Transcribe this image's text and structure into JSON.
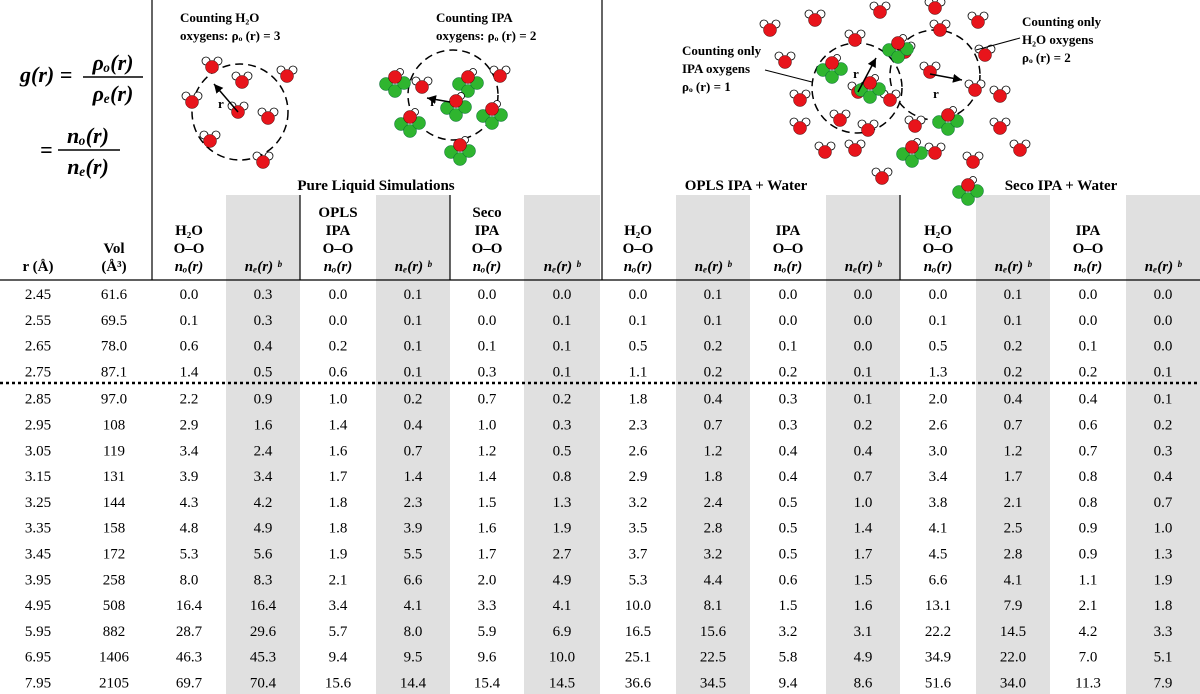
{
  "formula": {
    "lhs": "g(r) =",
    "num1": "ρₒ(r)",
    "den1": "ρₑ(r)",
    "eq2": "=",
    "num2": "nₒ(r)",
    "den2": "nₑ(r)"
  },
  "diagrams": [
    {
      "lines": [
        "Counting H₂O",
        "oxygens:  ρₒ (r) = 3"
      ],
      "radius_label": "r"
    },
    {
      "lines": [
        "Counting  IPA",
        "oxygens: ρₒ (r) = 2"
      ],
      "radius_label": "r"
    },
    {
      "lines": [
        "Counting only",
        "IPA oxygens",
        "ρₒ (r) = 1"
      ],
      "radius_label": "r"
    },
    {
      "lines": [
        "Counting only",
        "H₂O oxygens",
        "ρₒ (r) = 2"
      ],
      "radius_label": "r"
    }
  ],
  "table": {
    "groups": [
      "Pure Liquid Simulations",
      "OPLS IPA + Water",
      "Seco IPA + Water"
    ],
    "columns": [
      [
        "r (Å)"
      ],
      [
        "Vol",
        "(Å³)"
      ],
      [
        "H₂O",
        "O–O",
        "nₒ(r)"
      ],
      [
        "nₑ(r) ᵇ"
      ],
      [
        "OPLS",
        "IPA",
        "O–O",
        "nₒ(r)"
      ],
      [
        "nₑ(r) ᵇ"
      ],
      [
        "Seco",
        "IPA",
        "O–O",
        "nₒ(r)"
      ],
      [
        "nₑ(r) ᵇ"
      ],
      [
        "H₂O",
        "O–O",
        "nₒ(r)"
      ],
      [
        "nₑ(r) ᵇ"
      ],
      [
        "IPA",
        "O–O",
        "nₒ(r)"
      ],
      [
        "nₑ(r) ᵇ"
      ],
      [
        "H₂O",
        "O–O",
        "nₒ(r)"
      ],
      [
        "nₑ(r) ᵇ"
      ],
      [
        "IPA",
        "O–O",
        "nₒ(r)"
      ],
      [
        "nₑ(r) ᵇ"
      ]
    ],
    "rows": [
      [
        "2.45",
        "61.6",
        "0.0",
        "0.3",
        "0.0",
        "0.1",
        "0.0",
        "0.0",
        "0.0",
        "0.1",
        "0.0",
        "0.0",
        "0.0",
        "0.1",
        "0.0",
        "0.0"
      ],
      [
        "2.55",
        "69.5",
        "0.1",
        "0.3",
        "0.0",
        "0.1",
        "0.0",
        "0.1",
        "0.1",
        "0.1",
        "0.0",
        "0.0",
        "0.1",
        "0.1",
        "0.0",
        "0.0"
      ],
      [
        "2.65",
        "78.0",
        "0.6",
        "0.4",
        "0.2",
        "0.1",
        "0.1",
        "0.1",
        "0.5",
        "0.2",
        "0.1",
        "0.0",
        "0.5",
        "0.2",
        "0.1",
        "0.0"
      ],
      [
        "2.75",
        "87.1",
        "1.4",
        "0.5",
        "0.6",
        "0.1",
        "0.3",
        "0.1",
        "1.1",
        "0.2",
        "0.2",
        "0.1",
        "1.3",
        "0.2",
        "0.2",
        "0.1"
      ],
      [
        "2.85",
        "97.0",
        "2.2",
        "0.9",
        "1.0",
        "0.2",
        "0.7",
        "0.2",
        "1.8",
        "0.4",
        "0.3",
        "0.1",
        "2.0",
        "0.4",
        "0.4",
        "0.1"
      ],
      [
        "2.95",
        "108",
        "2.9",
        "1.6",
        "1.4",
        "0.4",
        "1.0",
        "0.3",
        "2.3",
        "0.7",
        "0.3",
        "0.2",
        "2.6",
        "0.7",
        "0.6",
        "0.2"
      ],
      [
        "3.05",
        "119",
        "3.4",
        "2.4",
        "1.6",
        "0.7",
        "1.2",
        "0.5",
        "2.6",
        "1.2",
        "0.4",
        "0.4",
        "3.0",
        "1.2",
        "0.7",
        "0.3"
      ],
      [
        "3.15",
        "131",
        "3.9",
        "3.4",
        "1.7",
        "1.4",
        "1.4",
        "0.8",
        "2.9",
        "1.8",
        "0.4",
        "0.7",
        "3.4",
        "1.7",
        "0.8",
        "0.4"
      ],
      [
        "3.25",
        "144",
        "4.3",
        "4.2",
        "1.8",
        "2.3",
        "1.5",
        "1.3",
        "3.2",
        "2.4",
        "0.5",
        "1.0",
        "3.8",
        "2.1",
        "0.8",
        "0.7"
      ],
      [
        "3.35",
        "158",
        "4.8",
        "4.9",
        "1.8",
        "3.9",
        "1.6",
        "1.9",
        "3.5",
        "2.8",
        "0.5",
        "1.4",
        "4.1",
        "2.5",
        "0.9",
        "1.0"
      ],
      [
        "3.45",
        "172",
        "5.3",
        "5.6",
        "1.9",
        "5.5",
        "1.7",
        "2.7",
        "3.7",
        "3.2",
        "0.5",
        "1.7",
        "4.5",
        "2.8",
        "0.9",
        "1.3"
      ],
      [
        "3.95",
        "258",
        "8.0",
        "8.3",
        "2.1",
        "6.6",
        "2.0",
        "4.9",
        "5.3",
        "4.4",
        "0.6",
        "1.5",
        "6.6",
        "4.1",
        "1.1",
        "1.9"
      ],
      [
        "4.95",
        "508",
        "16.4",
        "16.4",
        "3.4",
        "4.1",
        "3.3",
        "4.1",
        "10.0",
        "8.1",
        "1.5",
        "1.6",
        "13.1",
        "7.9",
        "2.1",
        "1.8"
      ],
      [
        "5.95",
        "882",
        "28.7",
        "29.6",
        "5.7",
        "8.0",
        "5.9",
        "6.9",
        "16.5",
        "15.6",
        "3.2",
        "3.1",
        "22.2",
        "14.5",
        "4.2",
        "3.3"
      ],
      [
        "6.95",
        "1406",
        "46.3",
        "45.3",
        "9.4",
        "9.5",
        "9.6",
        "10.0",
        "25.1",
        "22.5",
        "5.8",
        "4.9",
        "34.9",
        "22.0",
        "7.0",
        "5.1"
      ],
      [
        "7.95",
        "2105",
        "69.7",
        "70.4",
        "15.6",
        "14.4",
        "15.4",
        "14.5",
        "36.6",
        "34.5",
        "9.4",
        "8.6",
        "51.6",
        "34.0",
        "11.3",
        "7.9"
      ]
    ]
  }
}
